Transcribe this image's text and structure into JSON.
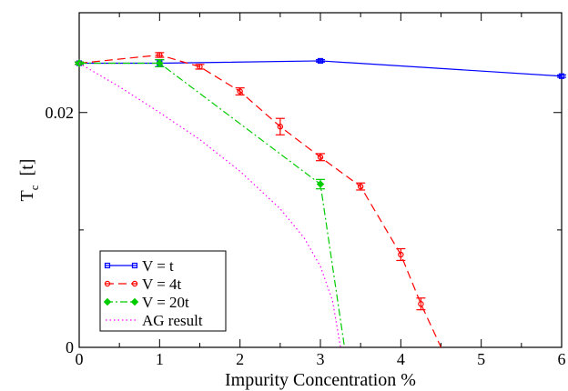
{
  "chart_data": {
    "type": "line",
    "xlabel": "Impurity Concentration %",
    "ylabel": {
      "main": "T",
      "sub": "c",
      "suffix": "  [t]"
    },
    "xlim": [
      0,
      6
    ],
    "ylim": [
      0,
      0.0285
    ],
    "xticks": [
      {
        "value": 0,
        "label": "0"
      },
      {
        "value": 1,
        "label": "1"
      },
      {
        "value": 2,
        "label": "2"
      },
      {
        "value": 3,
        "label": "3"
      },
      {
        "value": 4,
        "label": "4"
      },
      {
        "value": 5,
        "label": "5"
      },
      {
        "value": 6,
        "label": "6"
      }
    ],
    "yticks": [
      {
        "value": 0,
        "label": "0"
      },
      {
        "value": 0.02,
        "label": "0.02"
      }
    ],
    "grid": false,
    "legend_position": "bottom-left",
    "series": [
      {
        "name": "V = t",
        "color": "#0000ff",
        "dash": "",
        "marker": "square",
        "x": [
          0,
          1,
          3,
          6
        ],
        "y": [
          0.0242,
          0.0242,
          0.0244,
          0.0231
        ],
        "err": [
          0.0001,
          0.0003,
          0.0001,
          0.0001
        ]
      },
      {
        "name": "V = 4t",
        "color": "#ff0000",
        "dash": "9,5",
        "marker": "circle",
        "x": [
          0,
          1,
          1.5,
          2,
          2.5,
          3,
          3.5,
          4,
          4.25,
          4.5
        ],
        "y": [
          0.0242,
          0.0249,
          0.0239,
          0.0218,
          0.0188,
          0.0162,
          0.0137,
          0.0079,
          0.0037,
          0
        ],
        "err": [
          0.0001,
          0.0002,
          0.0002,
          0.0003,
          0.0007,
          0.0003,
          0.0003,
          0.0005,
          0.0005,
          0
        ],
        "marker_count": 9
      },
      {
        "name": "V = 20t",
        "color": "#00cc00",
        "dash": "8,3,2,3",
        "marker": "diamond",
        "x": [
          0,
          1,
          3,
          3.3
        ],
        "y": [
          0.0242,
          0.0242,
          0.0139,
          0
        ],
        "err": [
          0.0001,
          0.0003,
          0.0004,
          0
        ],
        "marker_count": 3
      },
      {
        "name": "AG result",
        "color": "#ff00ff",
        "dash": "1.5,3",
        "marker": "none",
        "x": [
          0,
          0.5,
          1,
          1.5,
          2,
          2.5,
          2.8,
          3.0,
          3.15,
          3.25
        ],
        "y": [
          0.0242,
          0.0222,
          0.02,
          0.0177,
          0.015,
          0.0118,
          0.0093,
          0.0069,
          0.004,
          0
        ],
        "err": []
      }
    ]
  }
}
